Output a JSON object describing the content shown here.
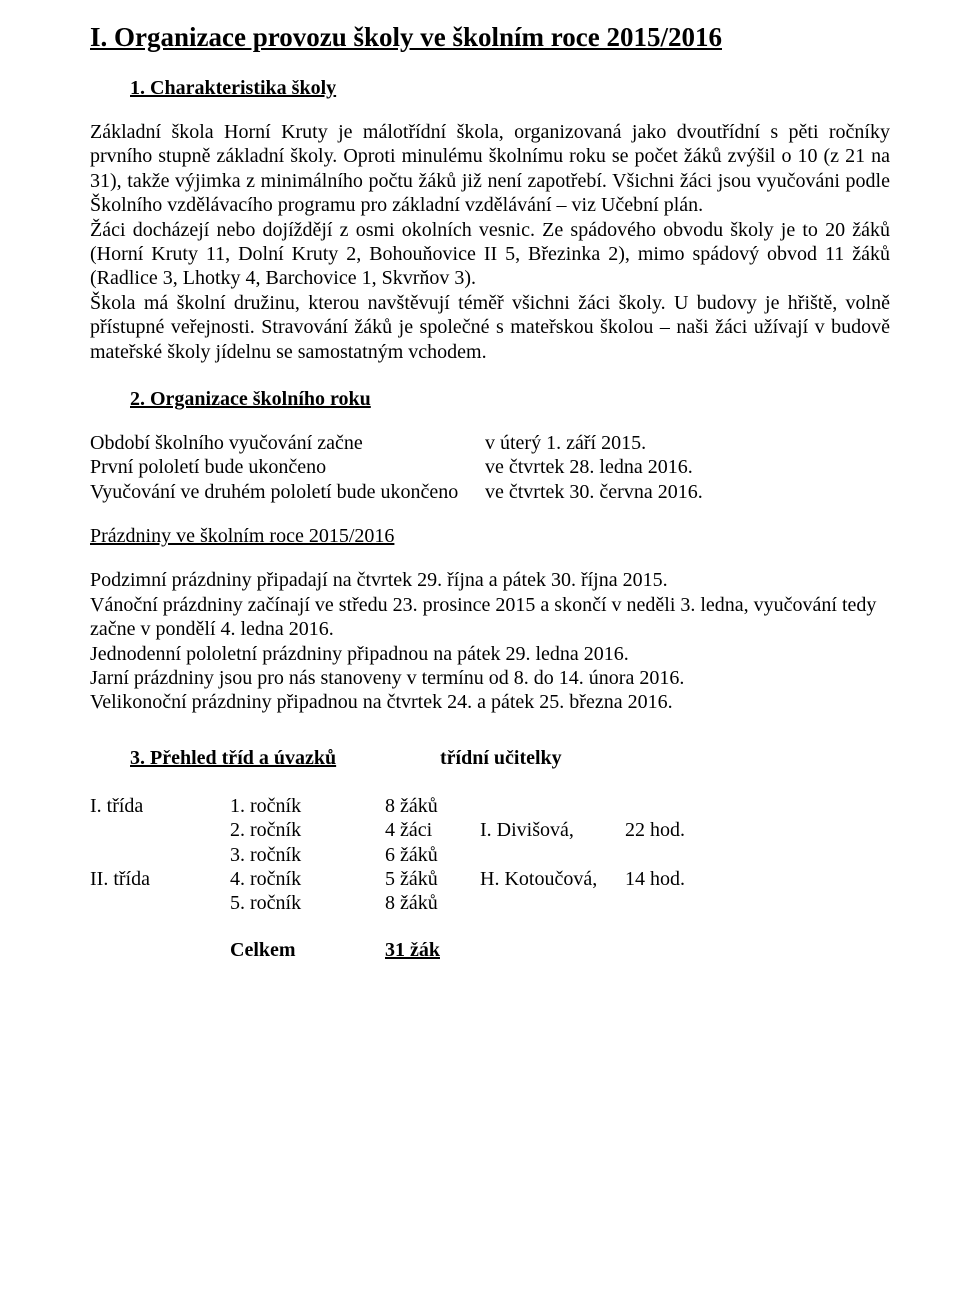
{
  "title": "I. Organizace provozu školy ve školním roce 2015/2016",
  "section1": {
    "heading": "1. Charakteristika školy",
    "body": "Základní škola Horní Kruty je málotřídní škola, organizovaná jako dvoutřídní s pěti ročníky prvního stupně základní školy. Oproti minulému školnímu roku se počet žáků zvýšil o 10 (z 21 na 31), takže výjimka z minimálního počtu žáků již není zapotřebí. Všichni žáci jsou vyučováni podle  Školního vzdělávacího programu pro základní vzdělávání – viz Učební plán.\nŽáci docházejí nebo dojíždějí z osmi okolních vesnic. Ze spádového obvodu školy je to 20 žáků (Horní Kruty 11, Dolní Kruty 2, Bohouňovice II 5, Březinka 2), mimo spádový obvod 11 žáků (Radlice 3, Lhotky 4, Barchovice 1, Skvrňov 3).\nŠkola má školní družinu, kterou navštěvují téměř všichni žáci školy. U budovy je hřiště, volně přístupné veřejnosti. Stravování žáků je společné s mateřskou školou – naši žáci užívají v budově mateřské školy jídelnu se samostatným vchodem."
  },
  "section2": {
    "heading": "2. Organizace školního roku",
    "rows": [
      {
        "k": "Období školního vyučování začne",
        "v": "v úterý 1. září 2015."
      },
      {
        "k": "První pololetí bude ukončeno",
        "v": "ve čtvrtek 28. ledna 2016."
      },
      {
        "k": "Vyučování ve druhém pololetí bude ukončeno",
        "v": "ve čtvrtek 30. června 2016."
      }
    ],
    "holidays_heading": "Prázdniny ve školním roce  2015/2016",
    "holidays": [
      "Podzimní prázdniny připadají na čtvrtek 29. října a pátek 30. října  2015.",
      "Vánoční prázdniny začínají ve středu  23. prosince  2015  a  skončí v neděli 3. ledna, vyučování tedy začne v pondělí  4. ledna 2016.",
      "Jednodenní pololetní prázdniny připadnou na pátek 29. ledna  2016.",
      "Jarní prázdniny jsou pro nás stanoveny v termínu od  8. do 14. února 2016.",
      "Velikonoční prázdniny připadnou na čtvrtek 24. a pátek 25. března 2016."
    ]
  },
  "section3": {
    "heading_left": "3.  Přehled tříd a úvazků",
    "heading_right": "třídní učitelky",
    "rows": [
      {
        "c1": "I. třída",
        "c2": "1. ročník",
        "c3": "8 žáků",
        "c4": "",
        "c5": ""
      },
      {
        "c1": "",
        "c2": "2. ročník",
        "c3": "4  žáci",
        "c4": "I. Divišová,",
        "c5": "22 hod."
      },
      {
        "c1": "",
        "c2": "3. ročník",
        "c3": "6 žáků",
        "c4": "",
        "c5": ""
      },
      {
        "c1": "II. třída",
        "c2": "4. ročník",
        "c3": "5 žáků",
        "c4": "H. Kotoučová,",
        "c5": "14 hod."
      },
      {
        "c1": "",
        "c2": "5. ročník",
        "c3": "8 žáků",
        "c4": "",
        "c5": ""
      }
    ],
    "total_label": "Celkem",
    "total_value": "31 žák"
  }
}
